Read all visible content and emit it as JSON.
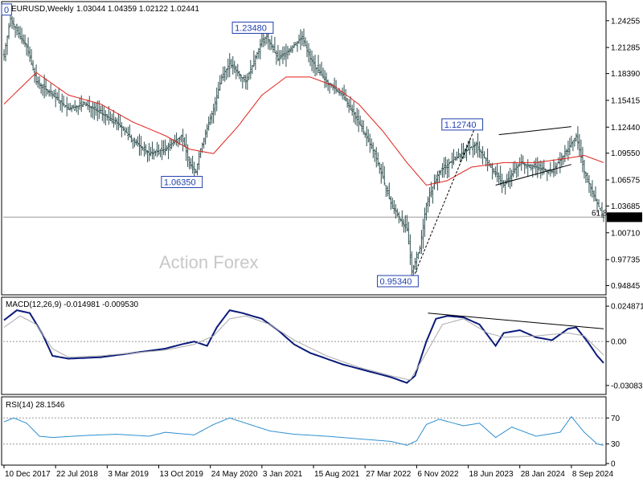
{
  "header": {
    "symbol": "EURUSD,Weekly",
    "ohlc": "1.03044 1.04359 1.02122 1.02441",
    "macd_label": "MACD(12,26,9) -0.014981 -0.009530",
    "rsi_label": "RSI(14) 28.1546"
  },
  "watermark": "Action Forex",
  "colors": {
    "price": "#2f4f4f",
    "ma": "#e0201b",
    "macd": "#0a1a7a",
    "signal": "#aaaaaa",
    "rsi": "#2e8fd0",
    "trend": "#000000",
    "label": "#1f3fae"
  },
  "chart_data": [
    {
      "type": "ohlc",
      "panel": "price",
      "y_ticks": [
        "1.24255",
        "1.21285",
        "1.18390",
        "1.15415",
        "1.12440",
        "1.09550",
        "1.06575",
        "1.03685",
        "1.00710",
        "0.97735",
        "0.94845"
      ],
      "ylim": [
        0.94,
        1.262
      ],
      "current_price": "1.02441",
      "fib_label": "61.8",
      "fib_level": 1.0245,
      "annotations": [
        {
          "text": "1.23480",
          "x_index": 163,
          "y": 1.2348
        },
        {
          "text": "1.06350",
          "x_index": 119,
          "y": 1.0635
        },
        {
          "text": "1.12740",
          "x_index": 293,
          "y": 1.1274
        },
        {
          "text": "0.95340",
          "x_index": 253,
          "y": 0.9534
        },
        {
          "text": "0",
          "x_index": 0,
          "y": 1.255
        }
      ],
      "close_anchors": [
        [
          0,
          1.205
        ],
        [
          4,
          1.245
        ],
        [
          10,
          1.225
        ],
        [
          14,
          1.215
        ],
        [
          20,
          1.175
        ],
        [
          30,
          1.16
        ],
        [
          40,
          1.145
        ],
        [
          50,
          1.15
        ],
        [
          60,
          1.14
        ],
        [
          70,
          1.13
        ],
        [
          80,
          1.11
        ],
        [
          90,
          1.095
        ],
        [
          100,
          1.1
        ],
        [
          110,
          1.115
        ],
        [
          115,
          1.085
        ],
        [
          119,
          1.075
        ],
        [
          122,
          1.1
        ],
        [
          130,
          1.145
        ],
        [
          135,
          1.18
        ],
        [
          140,
          1.195
        ],
        [
          150,
          1.175
        ],
        [
          160,
          1.22
        ],
        [
          163,
          1.225
        ],
        [
          170,
          1.2
        ],
        [
          180,
          1.215
        ],
        [
          185,
          1.225
        ],
        [
          190,
          1.2
        ],
        [
          200,
          1.175
        ],
        [
          210,
          1.16
        ],
        [
          220,
          1.13
        ],
        [
          230,
          1.095
        ],
        [
          240,
          1.04
        ],
        [
          250,
          1.01
        ],
        [
          253,
          0.965
        ],
        [
          258,
          0.99
        ],
        [
          262,
          1.04
        ],
        [
          270,
          1.075
        ],
        [
          280,
          1.09
        ],
        [
          293,
          1.105
        ],
        [
          300,
          1.085
        ],
        [
          310,
          1.06
        ],
        [
          320,
          1.085
        ],
        [
          330,
          1.08
        ],
        [
          340,
          1.075
        ],
        [
          350,
          1.1
        ],
        [
          355,
          1.115
        ],
        [
          360,
          1.075
        ],
        [
          368,
          1.04
        ],
        [
          372,
          1.024
        ]
      ],
      "ma_anchors": [
        [
          0,
          1.15
        ],
        [
          20,
          1.185
        ],
        [
          40,
          1.16
        ],
        [
          60,
          1.15
        ],
        [
          80,
          1.13
        ],
        [
          100,
          1.115
        ],
        [
          115,
          1.1
        ],
        [
          130,
          1.095
        ],
        [
          145,
          1.125
        ],
        [
          160,
          1.16
        ],
        [
          175,
          1.18
        ],
        [
          190,
          1.18
        ],
        [
          205,
          1.17
        ],
        [
          220,
          1.15
        ],
        [
          235,
          1.12
        ],
        [
          250,
          1.085
        ],
        [
          262,
          1.06
        ],
        [
          275,
          1.065
        ],
        [
          290,
          1.08
        ],
        [
          310,
          1.085
        ],
        [
          330,
          1.085
        ],
        [
          350,
          1.09
        ],
        [
          360,
          1.093
        ],
        [
          372,
          1.085
        ]
      ],
      "trendlines": [
        {
          "from": [
            253,
            0.9534
          ],
          "to": [
            293,
            1.1274
          ],
          "style": "dashed"
        },
        {
          "from": [
            305,
            1.06
          ],
          "to": [
            352,
            1.083
          ],
          "style": "solid"
        },
        {
          "from": [
            307,
            1.116
          ],
          "to": [
            352,
            1.125
          ],
          "style": "solid"
        }
      ]
    },
    {
      "type": "line",
      "panel": "macd",
      "y_ticks": [
        "0.024871",
        "0.00",
        "-0.030836"
      ],
      "ylim": [
        -0.036,
        0.03
      ],
      "series": [
        {
          "name": "MACD",
          "anchors": [
            [
              0,
              0.015
            ],
            [
              8,
              0.022
            ],
            [
              16,
              0.02
            ],
            [
              24,
              0.005
            ],
            [
              30,
              -0.01
            ],
            [
              40,
              -0.012
            ],
            [
              60,
              -0.011
            ],
            [
              80,
              -0.008
            ],
            [
              100,
              -0.005
            ],
            [
              110,
              -0.002
            ],
            [
              118,
              0.0
            ],
            [
              126,
              -0.003
            ],
            [
              132,
              0.01
            ],
            [
              140,
              0.022
            ],
            [
              148,
              0.02
            ],
            [
              160,
              0.016
            ],
            [
              170,
              0.008
            ],
            [
              180,
              -0.002
            ],
            [
              190,
              -0.008
            ],
            [
              200,
              -0.012
            ],
            [
              210,
              -0.016
            ],
            [
              220,
              -0.019
            ],
            [
              230,
              -0.022
            ],
            [
              240,
              -0.025
            ],
            [
              250,
              -0.029
            ],
            [
              255,
              -0.024
            ],
            [
              262,
              0.0
            ],
            [
              268,
              0.016
            ],
            [
              275,
              0.018
            ],
            [
              285,
              0.017
            ],
            [
              295,
              0.012
            ],
            [
              305,
              -0.003
            ],
            [
              310,
              0.006
            ],
            [
              320,
              0.008
            ],
            [
              330,
              0.003
            ],
            [
              340,
              0.001
            ],
            [
              350,
              0.009
            ],
            [
              355,
              0.01
            ],
            [
              362,
              0.0
            ],
            [
              368,
              -0.01
            ],
            [
              372,
              -0.015
            ]
          ]
        },
        {
          "name": "Signal",
          "anchors": [
            [
              0,
              0.01
            ],
            [
              10,
              0.018
            ],
            [
              20,
              0.012
            ],
            [
              30,
              -0.005
            ],
            [
              40,
              -0.011
            ],
            [
              60,
              -0.01
            ],
            [
              80,
              -0.008
            ],
            [
              100,
              -0.006
            ],
            [
              118,
              -0.002
            ],
            [
              130,
              0.004
            ],
            [
              140,
              0.016
            ],
            [
              150,
              0.018
            ],
            [
              165,
              0.012
            ],
            [
              180,
              0.001
            ],
            [
              200,
              -0.01
            ],
            [
              220,
              -0.018
            ],
            [
              240,
              -0.024
            ],
            [
              252,
              -0.027
            ],
            [
              262,
              -0.008
            ],
            [
              272,
              0.012
            ],
            [
              285,
              0.016
            ],
            [
              300,
              0.006
            ],
            [
              310,
              0.003
            ],
            [
              330,
              0.004
            ],
            [
              350,
              0.006
            ],
            [
              360,
              0.004
            ],
            [
              372,
              -0.0095
            ]
          ]
        }
      ],
      "trendline": {
        "from": [
          263,
          0.02
        ],
        "to": [
          372,
          0.009
        ]
      }
    },
    {
      "type": "line",
      "panel": "rsi",
      "y_ticks": [
        "70",
        "30",
        "0"
      ],
      "ylim": [
        0,
        100
      ],
      "series": [
        {
          "name": "RSI",
          "anchors": [
            [
              0,
              64
            ],
            [
              6,
              70
            ],
            [
              14,
              62
            ],
            [
              22,
              42
            ],
            [
              30,
              40
            ],
            [
              50,
              43
            ],
            [
              70,
              45
            ],
            [
              90,
              42
            ],
            [
              100,
              48
            ],
            [
              118,
              44
            ],
            [
              130,
              60
            ],
            [
              140,
              70
            ],
            [
              150,
              62
            ],
            [
              165,
              50
            ],
            [
              180,
              45
            ],
            [
              200,
              42
            ],
            [
              220,
              38
            ],
            [
              240,
              34
            ],
            [
              250,
              28
            ],
            [
              256,
              35
            ],
            [
              262,
              60
            ],
            [
              270,
              68
            ],
            [
              285,
              58
            ],
            [
              295,
              62
            ],
            [
              305,
              40
            ],
            [
              315,
              56
            ],
            [
              330,
              42
            ],
            [
              345,
              48
            ],
            [
              352,
              72
            ],
            [
              360,
              48
            ],
            [
              368,
              30
            ],
            [
              372,
              28
            ]
          ]
        }
      ],
      "levels": [
        70,
        30
      ]
    }
  ],
  "x_axis": {
    "n_bars": 373,
    "ticks": [
      {
        "label": "10 Dec 2017",
        "index": 0
      },
      {
        "label": "22 Jul 2018",
        "index": 32
      },
      {
        "label": "3 Mar 2019",
        "index": 64
      },
      {
        "label": "13 Oct 2019",
        "index": 96
      },
      {
        "label": "24 May 2020",
        "index": 128
      },
      {
        "label": "3 Jan 2021",
        "index": 160
      },
      {
        "label": "15 Aug 2021",
        "index": 192
      },
      {
        "label": "27 Mar 2022",
        "index": 224
      },
      {
        "label": "6 Nov 2022",
        "index": 256
      },
      {
        "label": "18 Jun 2023",
        "index": 288
      },
      {
        "label": "28 Jan 2024",
        "index": 320
      },
      {
        "label": "8 Sep 2024",
        "index": 352
      }
    ]
  }
}
